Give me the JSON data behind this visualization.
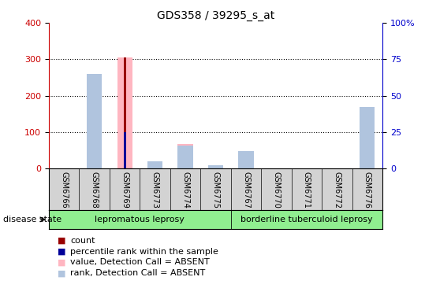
{
  "title": "GDS358 / 39295_s_at",
  "samples": [
    "GSM6766",
    "GSM6768",
    "GSM6769",
    "GSM6773",
    "GSM6774",
    "GSM6775",
    "GSM6767",
    "GSM6770",
    "GSM6771",
    "GSM6772",
    "GSM6776"
  ],
  "count_values": [
    0,
    0,
    305,
    0,
    0,
    0,
    0,
    0,
    0,
    0,
    0
  ],
  "percentile_values_right": [
    0,
    0,
    25,
    0,
    0,
    0,
    0,
    0,
    0,
    0,
    0
  ],
  "value_absent": [
    0,
    260,
    305,
    0,
    68,
    0,
    40,
    0,
    0,
    0,
    135
  ],
  "rank_absent_right": [
    0,
    65,
    0,
    5,
    16,
    2,
    12,
    0,
    0,
    0,
    42
  ],
  "disease_groups": [
    {
      "label": "lepromatous leprosy",
      "start": 0,
      "end": 5,
      "color": "#90EE90"
    },
    {
      "label": "borderline tuberculoid leprosy",
      "start": 6,
      "end": 10,
      "color": "#90EE90"
    }
  ],
  "ylim_left": [
    0,
    400
  ],
  "ylim_right": [
    0,
    100
  ],
  "yticks_left": [
    0,
    100,
    200,
    300,
    400
  ],
  "yticks_right": [
    0,
    25,
    50,
    75,
    100
  ],
  "yticklabels_right": [
    "0",
    "25",
    "50",
    "75",
    "100%"
  ],
  "left_axis_color": "#cc0000",
  "right_axis_color": "#0000cc",
  "count_color": "#990000",
  "percentile_color": "#000099",
  "value_absent_color": "#ffb6c1",
  "rank_absent_color": "#b0c4de",
  "grid_color": "black",
  "bg_color": "white",
  "xlabel_area_color": "#d3d3d3"
}
